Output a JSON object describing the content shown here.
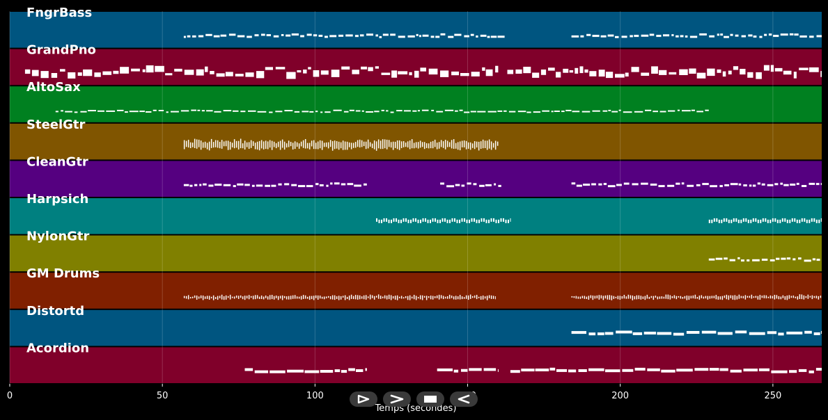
{
  "chart_data": {
    "type": "piano-roll",
    "xlabel": "Temps (secondes)",
    "xlim": [
      0,
      266
    ],
    "x_ticks": [
      0,
      50,
      100,
      150,
      200,
      250
    ],
    "grid": true,
    "tracks": [
      {
        "name": "FngrBass",
        "color": "#005580",
        "segments": [
          [
            57,
            163
          ],
          [
            184,
            266
          ]
        ],
        "style": "line"
      },
      {
        "name": "GrandPno",
        "color": "#80002a",
        "segments": [
          [
            5,
            160
          ],
          [
            163,
            266
          ]
        ],
        "style": "chords"
      },
      {
        "name": "AltoSax",
        "color": "#008020",
        "segments": [
          [
            15,
            229
          ]
        ],
        "style": "dashes"
      },
      {
        "name": "SteelGtr",
        "color": "#805500",
        "segments": [
          [
            57,
            160
          ]
        ],
        "style": "strum"
      },
      {
        "name": "CleanGtr",
        "color": "#550080",
        "segments": [
          [
            57,
            117
          ],
          [
            141,
            161
          ],
          [
            184,
            266
          ]
        ],
        "style": "line"
      },
      {
        "name": "Harpsich",
        "color": "#008080",
        "segments": [
          [
            120,
            164
          ],
          [
            229,
            266
          ]
        ],
        "style": "zigzag"
      },
      {
        "name": "NylonGtr",
        "color": "#808000",
        "segments": [
          [
            229,
            266
          ]
        ],
        "style": "line"
      },
      {
        "name": "GM Drums",
        "color": "#802000",
        "segments": [
          [
            57,
            159
          ],
          [
            184,
            266
          ]
        ],
        "style": "drums"
      },
      {
        "name": "Distortd",
        "color": "#005580",
        "segments": [
          [
            184,
            266
          ]
        ],
        "style": "thick"
      },
      {
        "name": "Acordion",
        "color": "#80002a",
        "segments": [
          [
            77,
            117
          ],
          [
            140,
            160
          ],
          [
            164,
            266
          ]
        ],
        "style": "thick"
      }
    ]
  },
  "transport": {
    "buttons": [
      {
        "name": "play-button",
        "icon": "play-outline-icon"
      },
      {
        "name": "forward-button",
        "icon": "chevron-right-icon"
      },
      {
        "name": "stop-button",
        "icon": "stop-icon"
      },
      {
        "name": "rewind-button",
        "icon": "reverse-play-icon"
      }
    ]
  }
}
